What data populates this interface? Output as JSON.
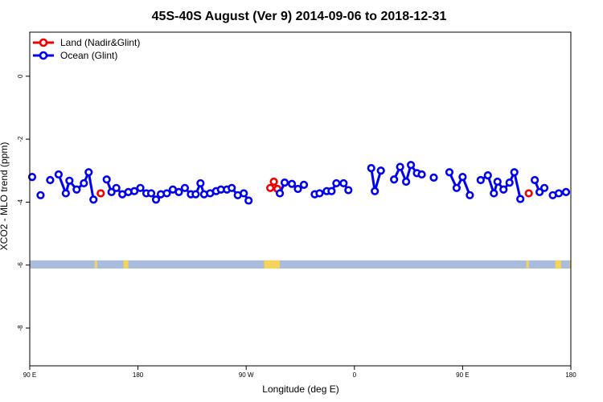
{
  "chart_data": {
    "type": "scatter",
    "title": "45S-40S August (Ver 9)   2014-09-06 to 2018-12-31",
    "xlabel": "Longitude (deg E)",
    "ylabel": "XCO2 - MLO trend (ppm)",
    "xlim": [
      90,
      540
    ],
    "ylim": [
      -9.2,
      1.4
    ],
    "x_ticks": [
      {
        "value": 90,
        "label": "90 E"
      },
      {
        "value": 180,
        "label": "180"
      },
      {
        "value": 270,
        "label": "90 W"
      },
      {
        "value": 360,
        "label": "0"
      },
      {
        "value": 450,
        "label": "90 E"
      },
      {
        "value": 540,
        "label": "180"
      }
    ],
    "y_ticks": [
      {
        "value": 0,
        "label": "0"
      },
      {
        "value": -2,
        "label": "-2"
      },
      {
        "value": -4,
        "label": "-4"
      },
      {
        "value": -6,
        "label": "-6"
      },
      {
        "value": -8,
        "label": "-8"
      }
    ],
    "legend": {
      "position": "top-left"
    },
    "series": [
      {
        "name": "Land (Nadir&Glint)",
        "color": "#ee0000",
        "points": [
          {
            "x": 149,
            "y": -3.72
          },
          {
            "x": 290,
            "y": -3.55
          },
          {
            "x": 293,
            "y": -3.35
          },
          {
            "x": 296,
            "y": -3.58
          },
          {
            "x": 505,
            "y": -3.72
          }
        ]
      },
      {
        "name": "Ocean (Glint)",
        "color": "#0000ee",
        "points": [
          {
            "x": 92,
            "y": -3.2
          },
          {
            "x": 99,
            "y": -3.78
          },
          {
            "x": 107,
            "y": -3.3
          },
          {
            "x": 114,
            "y": -3.12
          },
          {
            "x": 120,
            "y": -3.72
          },
          {
            "x": 123,
            "y": -3.32
          },
          {
            "x": 129,
            "y": -3.6
          },
          {
            "x": 135,
            "y": -3.4
          },
          {
            "x": 139,
            "y": -3.05
          },
          {
            "x": 143,
            "y": -3.92
          },
          {
            "x": 154,
            "y": -3.28
          },
          {
            "x": 158,
            "y": -3.68
          },
          {
            "x": 162,
            "y": -3.55
          },
          {
            "x": 167,
            "y": -3.75
          },
          {
            "x": 172,
            "y": -3.68
          },
          {
            "x": 177,
            "y": -3.65
          },
          {
            "x": 182,
            "y": -3.55
          },
          {
            "x": 187,
            "y": -3.72
          },
          {
            "x": 191,
            "y": -3.72
          },
          {
            "x": 195,
            "y": -3.92
          },
          {
            "x": 199,
            "y": -3.75
          },
          {
            "x": 204,
            "y": -3.72
          },
          {
            "x": 209,
            "y": -3.6
          },
          {
            "x": 214,
            "y": -3.68
          },
          {
            "x": 219,
            "y": -3.55
          },
          {
            "x": 224,
            "y": -3.75
          },
          {
            "x": 228,
            "y": -3.75
          },
          {
            "x": 232,
            "y": -3.4
          },
          {
            "x": 235,
            "y": -3.75
          },
          {
            "x": 240,
            "y": -3.72
          },
          {
            "x": 245,
            "y": -3.65
          },
          {
            "x": 249,
            "y": -3.6
          },
          {
            "x": 254,
            "y": -3.6
          },
          {
            "x": 258,
            "y": -3.55
          },
          {
            "x": 263,
            "y": -3.78
          },
          {
            "x": 268,
            "y": -3.72
          },
          {
            "x": 272,
            "y": -3.95
          },
          {
            "x": 298,
            "y": -3.72
          },
          {
            "x": 302,
            "y": -3.38
          },
          {
            "x": 308,
            "y": -3.42
          },
          {
            "x": 313,
            "y": -3.58
          },
          {
            "x": 318,
            "y": -3.45
          },
          {
            "x": 327,
            "y": -3.75
          },
          {
            "x": 331,
            "y": -3.72
          },
          {
            "x": 337,
            "y": -3.65
          },
          {
            "x": 341,
            "y": -3.65
          },
          {
            "x": 345,
            "y": -3.4
          },
          {
            "x": 351,
            "y": -3.4
          },
          {
            "x": 355,
            "y": -3.62
          },
          {
            "x": 374,
            "y": -2.92
          },
          {
            "x": 377,
            "y": -3.65
          },
          {
            "x": 382,
            "y": -3.0
          },
          {
            "x": 393,
            "y": -3.28
          },
          {
            "x": 398,
            "y": -2.88
          },
          {
            "x": 403,
            "y": -3.35
          },
          {
            "x": 407,
            "y": -2.82
          },
          {
            "x": 412,
            "y": -3.08
          },
          {
            "x": 416,
            "y": -3.12
          },
          {
            "x": 426,
            "y": -3.22
          },
          {
            "x": 439,
            "y": -3.05
          },
          {
            "x": 445,
            "y": -3.55
          },
          {
            "x": 450,
            "y": -3.2
          },
          {
            "x": 456,
            "y": -3.78
          },
          {
            "x": 465,
            "y": -3.3
          },
          {
            "x": 471,
            "y": -3.15
          },
          {
            "x": 476,
            "y": -3.72
          },
          {
            "x": 479,
            "y": -3.35
          },
          {
            "x": 484,
            "y": -3.6
          },
          {
            "x": 489,
            "y": -3.38
          },
          {
            "x": 493,
            "y": -3.05
          },
          {
            "x": 498,
            "y": -3.9
          },
          {
            "x": 510,
            "y": -3.3
          },
          {
            "x": 514,
            "y": -3.68
          },
          {
            "x": 518,
            "y": -3.55
          },
          {
            "x": 525,
            "y": -3.78
          },
          {
            "x": 530,
            "y": -3.72
          },
          {
            "x": 536,
            "y": -3.68
          }
        ],
        "gap_threshold": 6
      }
    ],
    "latitude_band": {
      "y_center": -5.98,
      "y_half_width": 0.13,
      "ocean_color": "#aabcdb",
      "land_color": "#f6d35a",
      "land_spans": [
        [
          144,
          146
        ],
        [
          168,
          172
        ],
        [
          285,
          298
        ],
        [
          503,
          505
        ],
        [
          527,
          532
        ],
        [
          539,
          540
        ]
      ]
    }
  }
}
